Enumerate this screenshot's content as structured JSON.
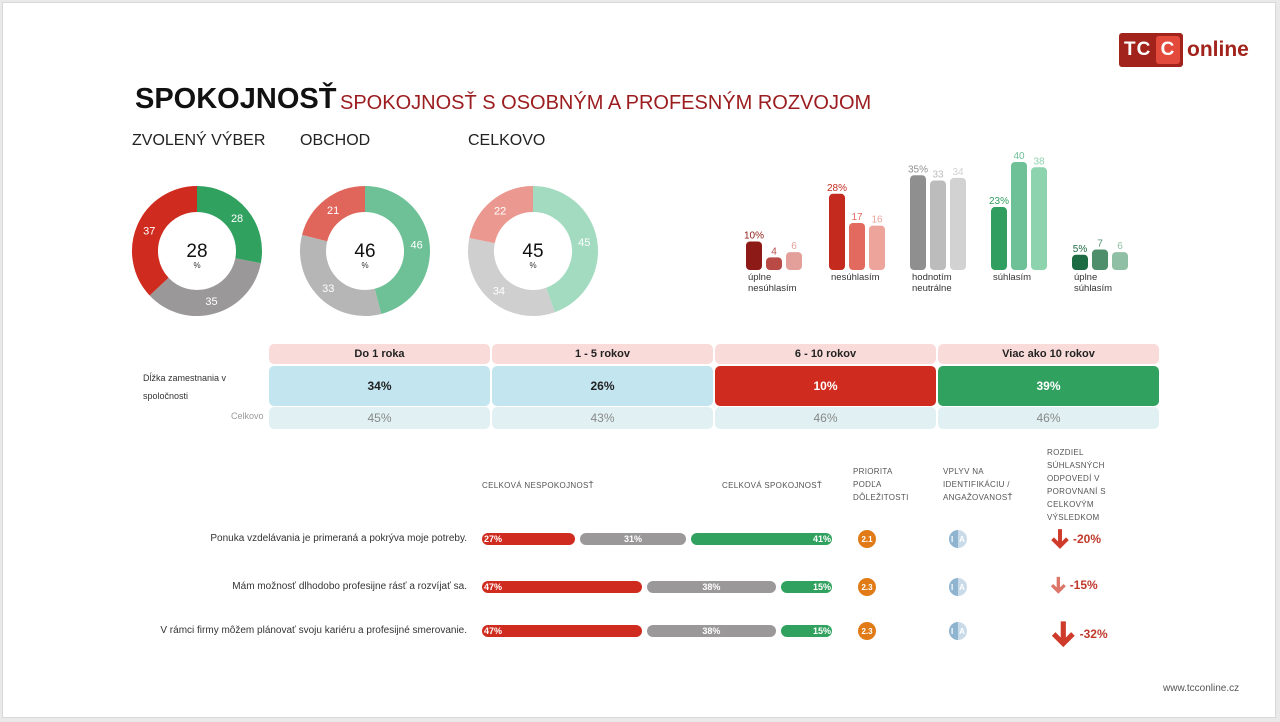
{
  "logo": {
    "tc": "TC",
    "c": "C",
    "online": "online"
  },
  "title": "SPOKOJNOSŤ",
  "subtitle": "SPOKOJNOSŤ S OSOBNÝM A PROFESNÝM ROZVOJOM",
  "colors": {
    "red": "#cf2b1e",
    "gray": "#9a9898",
    "green": "#31a15f",
    "accent": "#9b1d20",
    "orange": "#e07b18"
  },
  "chart_data": [
    {
      "type": "pie",
      "title": "ZVOLENÝ VÝBER",
      "center_value": "28",
      "center_unit": "%",
      "slices": [
        {
          "label": "28",
          "value": 28,
          "color": "#31a15f"
        },
        {
          "label": "35",
          "value": 35,
          "color": "#9a9898"
        },
        {
          "label": "37",
          "value": 37,
          "color": "#cf2b1e"
        }
      ]
    },
    {
      "type": "pie",
      "title": "OBCHOD",
      "center_value": "46",
      "center_unit": "%",
      "slices": [
        {
          "label": "46",
          "value": 46,
          "color": "#6ec196"
        },
        {
          "label": "33",
          "value": 33,
          "color": "#b7b6b6"
        },
        {
          "label": "21",
          "value": 21,
          "color": "#e0655b"
        }
      ]
    },
    {
      "type": "pie",
      "title": "CELKOVO",
      "center_value": "45",
      "center_unit": "%",
      "slices": [
        {
          "label": "45",
          "value": 45,
          "color": "#a3dbc0"
        },
        {
          "label": "34",
          "value": 34,
          "color": "#cfcfcf"
        },
        {
          "label": "22",
          "value": 22,
          "color": "#eb9890"
        }
      ]
    },
    {
      "type": "bar",
      "categories": [
        "úplne nesúhlasím",
        "nesúhlasím",
        "hodnotím neutrálne",
        "súhlasím",
        "úplne súhlasím"
      ],
      "category_lines": [
        [
          "úplne",
          "nesúhlasím"
        ],
        [
          "nesúhlasím"
        ],
        [
          "hodnotím",
          "neutrálne"
        ],
        [
          "súhlasím"
        ],
        [
          "úplne",
          "súhlasím"
        ]
      ],
      "series": [
        {
          "values": [
            10,
            28,
            35,
            23,
            5
          ],
          "labels": [
            "10%",
            "28%",
            "35%",
            "23%",
            "5%"
          ],
          "colors": [
            "#8e1a17",
            "#c42a1e",
            "#8f8f8f",
            "#2f9e5e",
            "#1d6b43"
          ]
        },
        {
          "values": [
            4,
            17,
            33,
            40,
            7
          ],
          "labels": [
            "4",
            "17",
            "33",
            "40",
            "7"
          ],
          "colors": [
            "#b94a46",
            "#e26a5f",
            "#bcbcbc",
            "#6ec196",
            "#4f8f6c"
          ]
        },
        {
          "values": [
            6,
            16,
            34,
            38,
            6
          ],
          "labels": [
            "6",
            "16",
            "34",
            "38",
            "6"
          ],
          "colors": [
            "#e3a09b",
            "#eda49b",
            "#d2d2d2",
            "#8dd3ae",
            "#8fbfa4"
          ]
        }
      ],
      "label_colors": [
        "#8e1a17",
        "#c42a1e",
        "#8f8f8f",
        "#2f9e5e",
        "#1d6b43"
      ]
    },
    {
      "type": "table",
      "row_label": "Dĺžka zamestnania v spoločnosti",
      "total_label": "Celkovo",
      "columns": [
        "Do 1 roka",
        "1 - 5 rokov",
        "6 - 10 rokov",
        "Viac ako 10 rokov"
      ],
      "values": [
        "34%",
        "26%",
        "10%",
        "39%"
      ],
      "value_colors": [
        "#c3e5f0",
        "#c3e5f0",
        "#cf2b1e",
        "#31a15f"
      ],
      "value_text_colors": [
        "#222",
        "#222",
        "#fff",
        "#fff"
      ],
      "totals": [
        "45%",
        "43%",
        "46%",
        "46%"
      ]
    },
    {
      "type": "bar",
      "headers": {
        "dissatisfaction": "CELKOVÁ NESPOKOJNOSŤ",
        "satisfaction": "CELKOVÁ SPOKOJNOSŤ",
        "priority": [
          "PRIORITA",
          "PODĽA",
          "DÔLEŽITOSTI"
        ],
        "impact": [
          "VPLYV NA",
          "IDENTIFIKÁCIU /",
          "ANGAŽOVANOSŤ"
        ],
        "difference": [
          "ROZDIEL",
          "SÚHLASNÝCH",
          "ODPOVEDÍ V",
          "POROVNANÍ S",
          "CELKOVÝM",
          "VÝSLEDKOM"
        ]
      },
      "rows": [
        {
          "statement": "Ponuka vzdelávania je primeraná a pokrýva moje potreby.",
          "neg": 27,
          "neu": 31,
          "pos": 41,
          "neg_label": "27%",
          "neu_label": "31%",
          "pos_label": "41%",
          "priority": "2.1",
          "impact": "I A",
          "diff": "-20%"
        },
        {
          "statement": "Mám možnosť dlhodobo profesijne rásť a rozvíjať sa.",
          "neg": 47,
          "neu": 38,
          "pos": 15,
          "neg_label": "47%",
          "neu_label": "38%",
          "pos_label": "15%",
          "priority": "2.3",
          "impact": "I A",
          "diff": "-15%"
        },
        {
          "statement": "V rámci firmy môžem plánovať svoju kariéru a profesijné smerovanie.",
          "neg": 47,
          "neu": 38,
          "pos": 15,
          "neg_label": "47%",
          "neu_label": "38%",
          "pos_label": "15%",
          "priority": "2.3",
          "impact": "I A",
          "diff": "-32%"
        }
      ]
    }
  ],
  "footer": "www.tcconline.cz"
}
